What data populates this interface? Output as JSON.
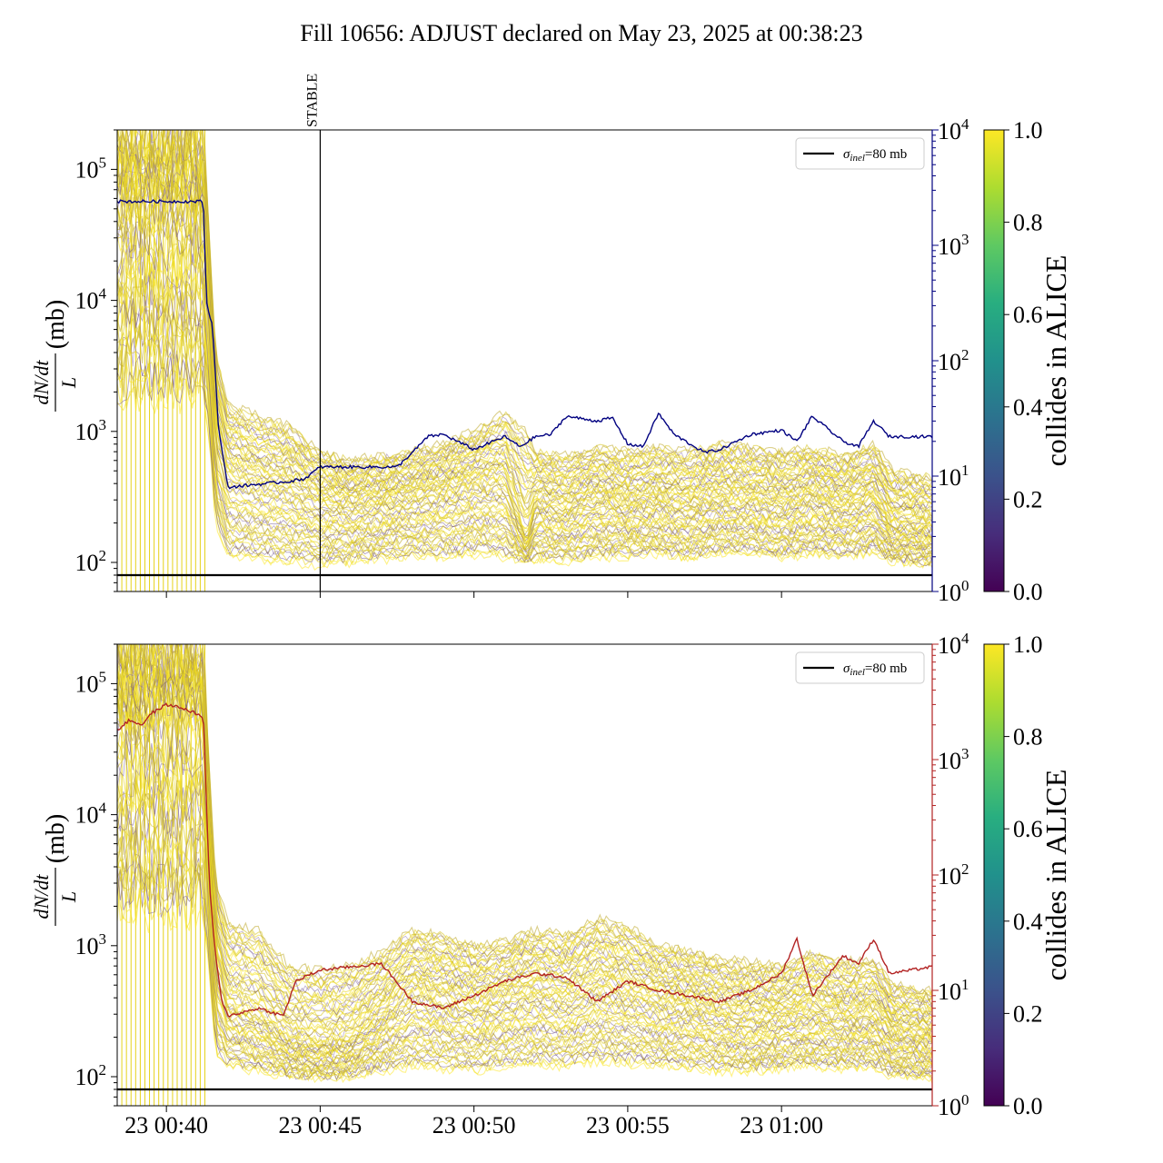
{
  "title": "Fill 10656: ADJUST declared on May 23, 2025 at 00:38:23",
  "chart_data": [
    {
      "type": "line",
      "panel": "top",
      "ylabel_left": "dN/dt / L (mb)",
      "ylabel_left_num": "dN/dt",
      "ylabel_left_den": "L",
      "ylabel_left_unit": "(mb)",
      "yscale_left": "log",
      "ylim_left": [
        60,
        200000
      ],
      "yticks_left": [
        "10^2",
        "10^3",
        "10^4",
        "10^5"
      ],
      "yscale_right": "log",
      "ylim_right": [
        1,
        10000
      ],
      "yticks_right": [
        "10^0",
        "10^1",
        "10^2",
        "10^3",
        "10^4"
      ],
      "right_axis_color": "#000080",
      "xlim_minutes": [
        -1.6,
        24.9
      ],
      "xticks": [
        "23 00:40",
        "23 00:45",
        "23 00:50",
        "23 00:55",
        "23 01:00"
      ],
      "xticks_minutes": [
        0,
        5,
        10,
        15,
        20
      ],
      "annotation": {
        "text": "STABLE",
        "x_minutes": 5
      },
      "legend": {
        "label": "σ_inel=80 mb",
        "sym": "σ",
        "sub": "inel",
        "rest": "=80 mb",
        "loc": "upper right"
      },
      "sigma_inel_mb": 80,
      "colorbar": {
        "label": "collides in ALICE",
        "min": 0.0,
        "max": 1.0,
        "ticks": [
          "0.0",
          "0.2",
          "0.4",
          "0.6",
          "0.8",
          "1.0"
        ],
        "colormap": "viridis"
      },
      "right_series": {
        "color": "#000080",
        "x_minutes": [
          -1.6,
          1.2,
          1.3,
          1.5,
          1.7,
          2.0,
          3.0,
          4.0,
          4.5,
          5.0,
          6.0,
          7.5,
          8.0,
          8.5,
          9.0,
          10.0,
          11.0,
          11.5,
          12.0,
          12.5,
          13.0,
          14.0,
          14.5,
          15.0,
          15.5,
          16.0,
          16.5,
          17.5,
          18.0,
          19.0,
          20.0,
          20.5,
          21.0,
          22.0,
          22.5,
          23.0,
          23.5,
          24.9
        ],
        "values": [
          2400,
          2400,
          320,
          200,
          25,
          8,
          8.5,
          9,
          9.5,
          12,
          12,
          12,
          16,
          22,
          23,
          17,
          22,
          18,
          22,
          23,
          33,
          30,
          32,
          19,
          18,
          35,
          23,
          16,
          17,
          23,
          25,
          20,
          33,
          20,
          18,
          30,
          22,
          22
        ]
      },
      "band": {
        "x_minutes": [
          -1.6,
          1.2,
          1.4,
          1.6,
          2.0,
          3.0,
          4.0,
          5.0,
          6.0,
          7.0,
          8.0,
          9.0,
          10.0,
          11.0,
          11.7,
          12.0,
          13.0,
          14.0,
          15.0,
          16.0,
          17.0,
          18.0,
          19.0,
          20.0,
          21.0,
          22.0,
          23.0,
          23.6,
          24.9
        ],
        "upper": [
          200000,
          200000,
          30000,
          4000,
          1600,
          1300,
          1100,
          700,
          600,
          650,
          700,
          800,
          1000,
          1400,
          1000,
          700,
          650,
          750,
          700,
          750,
          700,
          800,
          750,
          700,
          750,
          650,
          800,
          500,
          450
        ],
        "median": [
          50000,
          50000,
          8000,
          1000,
          500,
          420,
          380,
          300,
          280,
          300,
          320,
          350,
          400,
          420,
          150,
          280,
          260,
          320,
          280,
          300,
          280,
          320,
          300,
          280,
          320,
          280,
          320,
          200,
          190
        ],
        "lower": [
          2000,
          2000,
          800,
          200,
          110,
          105,
          100,
          95,
          100,
          105,
          110,
          110,
          115,
          110,
          100,
          105,
          100,
          110,
          110,
          115,
          105,
          120,
          115,
          110,
          115,
          110,
          120,
          100,
          95
        ]
      },
      "vertical_lines_x_minutes": [
        -1.45,
        -1.3,
        -1.15,
        -1.0,
        -0.85,
        -0.7,
        -0.55,
        -0.4,
        -0.25,
        -0.1,
        0.05,
        0.2,
        0.35,
        0.5,
        0.65,
        0.8,
        0.95,
        1.1,
        1.25
      ]
    },
    {
      "type": "line",
      "panel": "bottom",
      "ylabel_left": "dN/dt / L (mb)",
      "ylabel_left_num": "dN/dt",
      "ylabel_left_den": "L",
      "ylabel_left_unit": "(mb)",
      "yscale_left": "log",
      "ylim_left": [
        60,
        200000
      ],
      "yticks_left": [
        "10^2",
        "10^3",
        "10^4",
        "10^5"
      ],
      "yscale_right": "log",
      "ylim_right": [
        1,
        10000
      ],
      "yticks_right": [
        "10^0",
        "10^1",
        "10^2",
        "10^3",
        "10^4"
      ],
      "right_axis_color": "#b22222",
      "xlim_minutes": [
        -1.6,
        24.9
      ],
      "xticks": [
        "23 00:40",
        "23 00:45",
        "23 00:50",
        "23 00:55",
        "23 01:00"
      ],
      "xticks_minutes": [
        0,
        5,
        10,
        15,
        20
      ],
      "legend": {
        "label": "σ_inel=80 mb",
        "sym": "σ",
        "sub": "inel",
        "rest": "=80 mb",
        "loc": "upper right"
      },
      "sigma_inel_mb": 80,
      "colorbar": {
        "label": "collides in ALICE",
        "min": 0.0,
        "max": 1.0,
        "ticks": [
          "0.0",
          "0.2",
          "0.4",
          "0.6",
          "0.8",
          "1.0"
        ],
        "colormap": "viridis"
      },
      "right_series": {
        "color": "#b22222",
        "x_minutes": [
          -1.6,
          -1.2,
          -0.8,
          -0.5,
          0.0,
          0.5,
          1.0,
          1.2,
          1.4,
          1.5,
          1.6,
          1.8,
          2.0,
          3.0,
          3.8,
          4.2,
          5.0,
          6.0,
          7.0,
          8.0,
          9.0,
          10.0,
          11.0,
          12.0,
          13.0,
          14.0,
          15.0,
          16.0,
          17.0,
          18.0,
          19.0,
          20.0,
          20.5,
          21.0,
          22.0,
          22.5,
          23.0,
          23.5,
          24.9
        ],
        "values": [
          1800,
          2200,
          2000,
          2500,
          3000,
          2800,
          2500,
          2300,
          80,
          40,
          20,
          8,
          6,
          7,
          6,
          12,
          15,
          16,
          17,
          8,
          7,
          9,
          12,
          14,
          13,
          8,
          12,
          10,
          9,
          8,
          10,
          14,
          28,
          9,
          20,
          17,
          28,
          14,
          16
        ]
      },
      "band": {
        "x_minutes": [
          -1.6,
          1.2,
          1.4,
          1.6,
          2.0,
          3.0,
          4.0,
          5.0,
          6.0,
          7.0,
          8.0,
          9.0,
          10.0,
          11.0,
          12.0,
          13.0,
          14.0,
          15.0,
          16.0,
          17.0,
          18.0,
          19.0,
          20.0,
          21.0,
          22.0,
          23.0,
          23.6,
          24.9
        ],
        "upper": [
          200000,
          200000,
          20000,
          3000,
          1500,
          1300,
          700,
          650,
          700,
          900,
          1300,
          1200,
          1000,
          1100,
          1300,
          1200,
          1600,
          1400,
          1000,
          900,
          800,
          750,
          700,
          900,
          750,
          800,
          500,
          450
        ],
        "median": [
          60000,
          60000,
          5000,
          800,
          350,
          300,
          200,
          180,
          200,
          300,
          450,
          400,
          350,
          400,
          450,
          400,
          500,
          450,
          380,
          350,
          300,
          280,
          300,
          320,
          280,
          300,
          220,
          200
        ],
        "lower": [
          2000,
          2000,
          600,
          150,
          120,
          110,
          100,
          95,
          100,
          110,
          120,
          115,
          110,
          120,
          125,
          120,
          130,
          125,
          120,
          115,
          110,
          110,
          115,
          120,
          115,
          120,
          100,
          95
        ]
      },
      "vertical_lines_x_minutes": [
        -1.45,
        -1.3,
        -1.15,
        -1.0,
        -0.85,
        -0.7,
        -0.55,
        -0.4,
        -0.25,
        -0.1,
        0.05,
        0.2,
        0.35,
        0.5,
        0.65,
        0.8,
        0.95,
        1.1,
        1.25
      ]
    }
  ]
}
